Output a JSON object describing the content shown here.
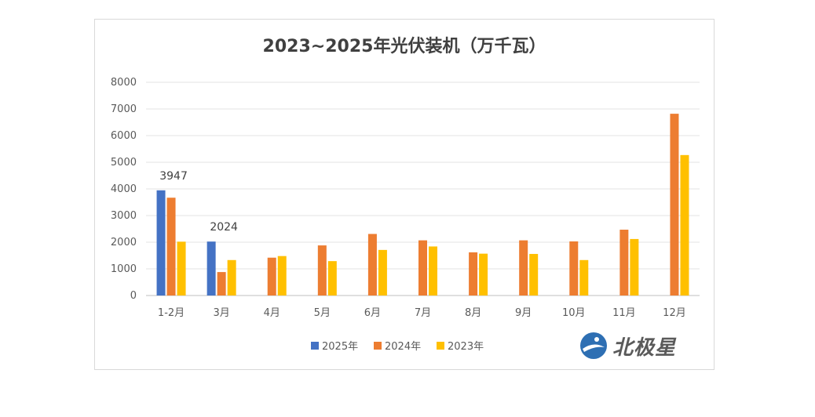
{
  "chart_data": {
    "type": "bar",
    "title": "2023~2025年光伏装机（万千瓦）",
    "categories": [
      "1-2月",
      "3月",
      "4月",
      "5月",
      "6月",
      "7月",
      "8月",
      "9月",
      "10月",
      "11月",
      "12月"
    ],
    "series": [
      {
        "name": "2025年",
        "color": "#4472c4",
        "values": [
          3947,
          2024,
          null,
          null,
          null,
          null,
          null,
          null,
          null,
          null,
          null
        ]
      },
      {
        "name": "2024年",
        "color": "#ed7d31",
        "values": [
          3670,
          880,
          1420,
          1880,
          2310,
          2070,
          1620,
          2070,
          2030,
          2470,
          6820
        ]
      },
      {
        "name": "2023年",
        "color": "#ffc000",
        "values": [
          2020,
          1330,
          1480,
          1290,
          1710,
          1840,
          1570,
          1560,
          1330,
          2120,
          5270
        ]
      }
    ],
    "data_labels": [
      {
        "series": 0,
        "index": 0,
        "text": "3947"
      },
      {
        "series": 0,
        "index": 1,
        "text": "2024"
      }
    ],
    "ylim": [
      0,
      8000
    ],
    "yticks": [
      0,
      1000,
      2000,
      3000,
      4000,
      5000,
      6000,
      7000,
      8000
    ],
    "grid": true,
    "legend_position": "bottom"
  },
  "watermark": {
    "text": "北极星",
    "icon": "polaris-logo-icon"
  }
}
